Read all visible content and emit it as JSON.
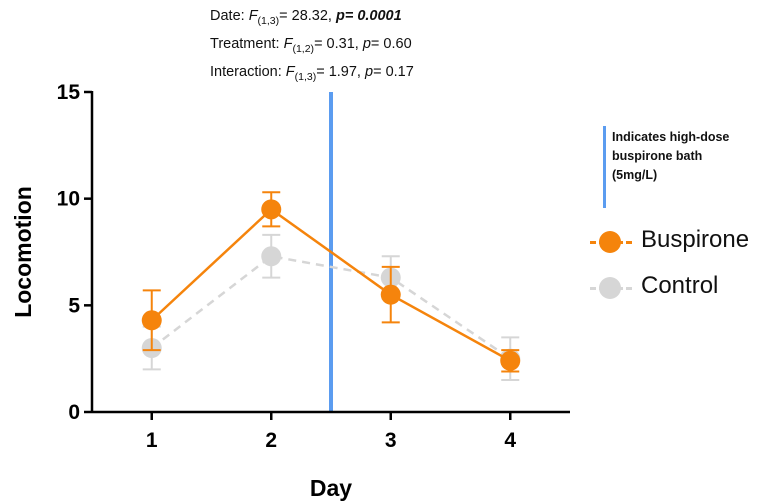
{
  "stats": {
    "date_prefix": "Date: ",
    "date_F": "F",
    "date_df": "(1,3)",
    "date_mid": "= 28.32, ",
    "date_p": "p= 0.0001",
    "treat_prefix": "Treatment: ",
    "treat_F": "F",
    "treat_df": "(1,2)",
    "treat_mid": "= 0.31, ",
    "treat_p_label": "p",
    "treat_p_val": "= 0.60",
    "inter_prefix": "Interaction: ",
    "inter_F": "F",
    "inter_df": "(1,3)",
    "inter_mid": "= 1.97, ",
    "inter_p_label": "p",
    "inter_p_val": "= 0.17"
  },
  "note": {
    "text": "Indicates high-dose buspirone bath (5mg/L)",
    "color": "#5b9cf0"
  },
  "chart_data": {
    "type": "line",
    "xlabel": "Day",
    "ylabel": "Locomotion",
    "x": [
      1,
      2,
      3,
      4
    ],
    "x_ticks": [
      "1",
      "2",
      "3",
      "4"
    ],
    "xlim": [
      0.5,
      4.5
    ],
    "ylim": [
      0,
      15
    ],
    "y_ticks": [
      "0",
      "5",
      "10",
      "15"
    ],
    "y_tick_values": [
      0,
      5,
      10,
      15
    ],
    "treatment_marker_x": 2.5,
    "series": [
      {
        "name": "Buspirone",
        "color": "#f5840c",
        "line_style": "solid",
        "values": [
          4.3,
          9.5,
          5.5,
          2.4
        ],
        "error": [
          1.4,
          0.8,
          1.3,
          0.5
        ]
      },
      {
        "name": "Control",
        "color": "#d6d6d6",
        "line_style": "dashed",
        "values": [
          3.0,
          7.3,
          6.3,
          2.5
        ],
        "error": [
          1.0,
          1.0,
          1.0,
          1.0
        ]
      }
    ]
  }
}
